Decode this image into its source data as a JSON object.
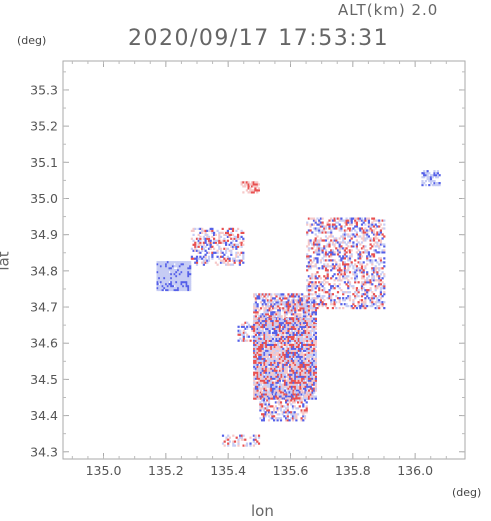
{
  "header": {
    "altitude_label": "ALT(km)  2.0",
    "timestamp": "2020/09/17 17:53:31"
  },
  "axes": {
    "y_unit": "(deg)",
    "x_unit": "(deg)",
    "y_label": "lat",
    "x_label": "lon"
  },
  "chart_data": {
    "type": "heatmap",
    "xlabel": "lon",
    "ylabel": "lat",
    "xlim": [
      134.87,
      136.16
    ],
    "ylim": [
      34.28,
      35.38
    ],
    "x_ticks": [
      "135.0",
      "135.2",
      "135.4",
      "135.6",
      "135.8",
      "136.0"
    ],
    "x_tick_values": [
      135.0,
      135.2,
      135.4,
      135.6,
      135.8,
      136.0
    ],
    "y_ticks": [
      "34.3",
      "34.4",
      "34.5",
      "34.6",
      "34.7",
      "34.8",
      "34.9",
      "35.0",
      "35.1",
      "35.2",
      "35.3"
    ],
    "y_tick_values": [
      34.3,
      34.4,
      34.5,
      34.6,
      34.7,
      34.8,
      34.9,
      35.0,
      35.1,
      35.2,
      35.3
    ],
    "colors": {
      "positive": "#e85050",
      "negative": "#5560e8",
      "light_positive": "#f6c8c8",
      "light_negative": "#c6ccf4"
    },
    "regions": [
      {
        "name": "west-blob",
        "lon": [
          135.17,
          135.28
        ],
        "lat": [
          34.75,
          34.83
        ],
        "sign": "negative",
        "density": 0.97
      },
      {
        "name": "north-band",
        "lon": [
          135.28,
          135.45
        ],
        "lat": [
          34.82,
          34.92
        ],
        "sign": "mixed",
        "density": 0.45
      },
      {
        "name": "north-small",
        "lon": [
          135.44,
          135.5
        ],
        "lat": [
          35.02,
          35.05
        ],
        "sign": "positive",
        "density": 0.5
      },
      {
        "name": "northeast-cluster",
        "lon": [
          135.65,
          135.9
        ],
        "lat": [
          34.7,
          34.95
        ],
        "sign": "mixed",
        "density": 0.45
      },
      {
        "name": "north-east-edge",
        "lon": [
          136.02,
          136.08
        ],
        "lat": [
          35.04,
          35.08
        ],
        "sign": "negative",
        "density": 0.6
      },
      {
        "name": "central-north",
        "lon": [
          135.48,
          135.68
        ],
        "lat": [
          34.65,
          34.74
        ],
        "sign": "mixed",
        "density": 0.7
      },
      {
        "name": "central-main",
        "lon": [
          135.48,
          135.68
        ],
        "lat": [
          34.45,
          34.67
        ],
        "sign": "mixed",
        "density": 0.9
      },
      {
        "name": "central-south",
        "lon": [
          135.5,
          135.65
        ],
        "lat": [
          34.39,
          34.47
        ],
        "sign": "mixed",
        "density": 0.55
      },
      {
        "name": "southwest-strip",
        "lon": [
          135.38,
          135.5
        ],
        "lat": [
          34.32,
          34.35
        ],
        "sign": "mixed",
        "density": 0.45
      },
      {
        "name": "mid-left-bits",
        "lon": [
          135.43,
          135.5
        ],
        "lat": [
          34.61,
          34.66
        ],
        "sign": "mixed",
        "density": 0.4
      }
    ]
  }
}
